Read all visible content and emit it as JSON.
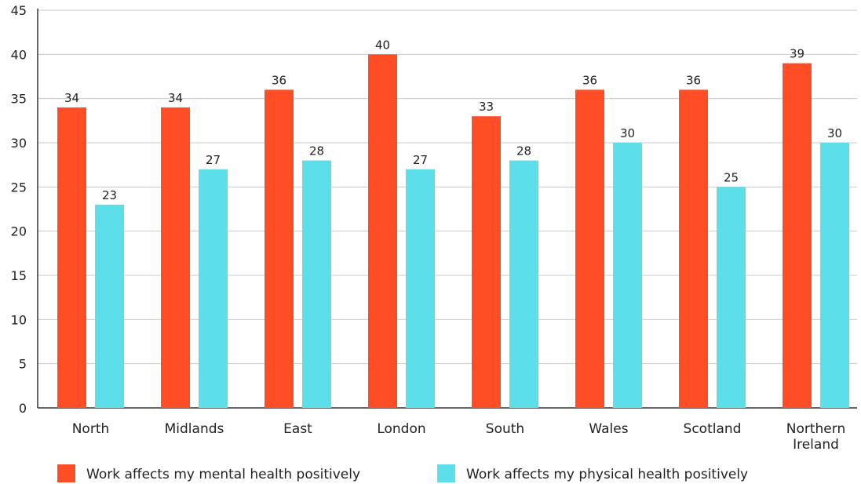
{
  "chart_data": {
    "type": "bar",
    "title": "",
    "xlabel": "",
    "ylabel": "",
    "categories": [
      [
        "North"
      ],
      [
        "Midlands"
      ],
      [
        "East"
      ],
      [
        "London"
      ],
      [
        "South"
      ],
      [
        "Wales"
      ],
      [
        "Scotland"
      ],
      [
        "Northern",
        "Ireland"
      ]
    ],
    "series": [
      {
        "name": "Work affects my mental health positively",
        "color": "#FF4D26",
        "values": [
          34,
          34,
          36,
          40,
          33,
          36,
          36,
          39
        ],
        "labels": [
          "34",
          "34",
          "36",
          "40",
          "33",
          "36",
          "36",
          "39"
        ]
      },
      {
        "name": "Work affects my physical health positively",
        "color": "#5CDFE8",
        "values": [
          23,
          27,
          28,
          27,
          28,
          30,
          25,
          30
        ],
        "labels": [
          "23",
          "27",
          "28",
          "27",
          "28",
          "30",
          "25",
          "30"
        ]
      }
    ],
    "ylim": [
      0,
      45
    ],
    "yticks": [
      "0",
      "5",
      "10",
      "15",
      "20",
      "25",
      "30",
      "35",
      "40",
      "45"
    ],
    "grid": true,
    "legend": "bottom"
  }
}
